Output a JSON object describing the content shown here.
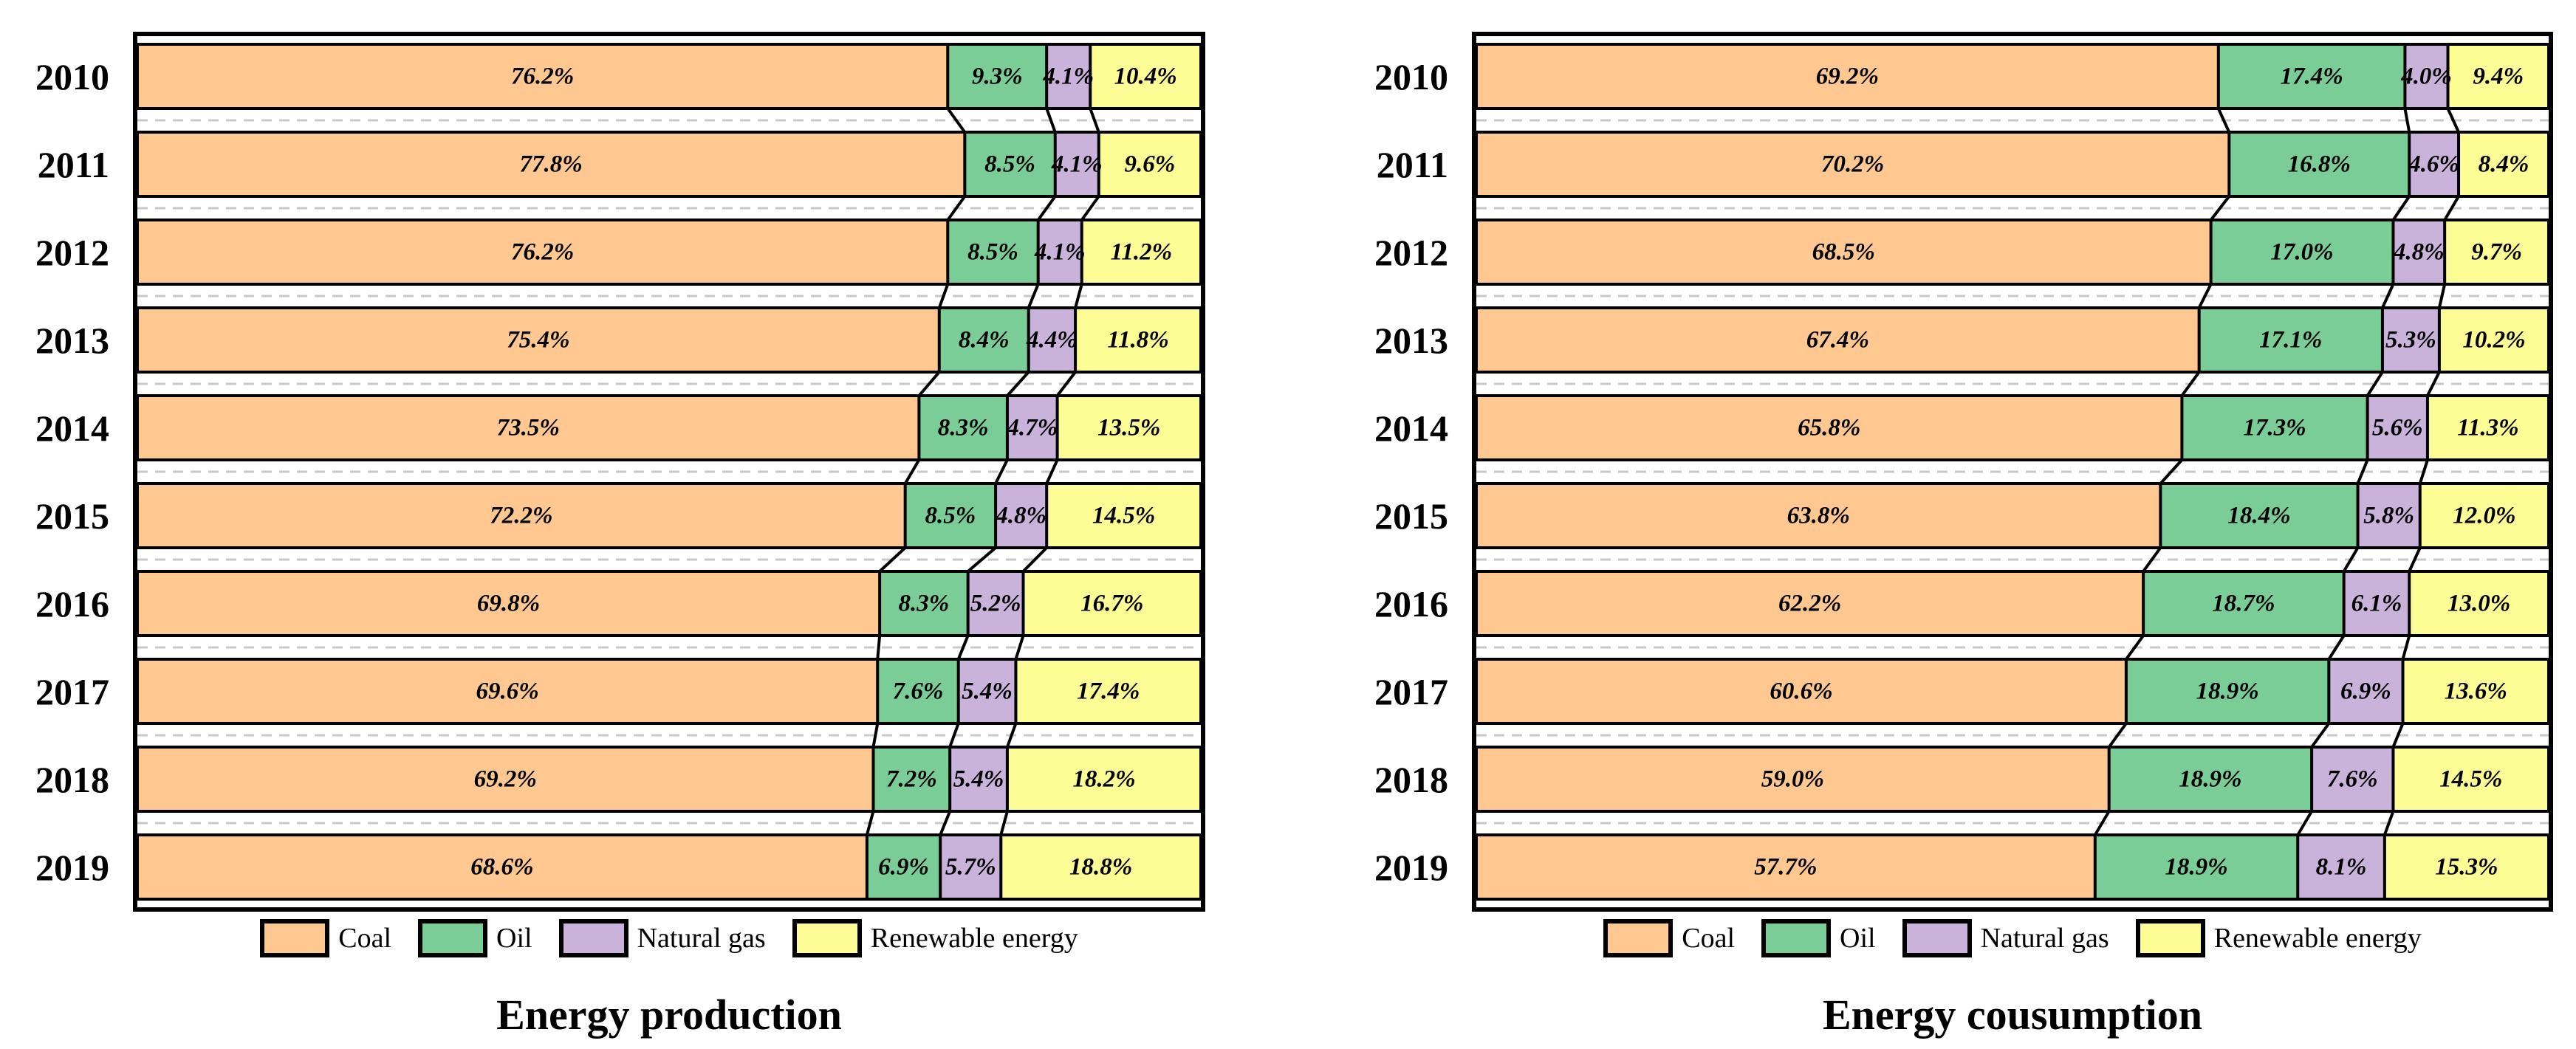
{
  "page": {
    "background": "#ffffff"
  },
  "colors": {
    "coal": "#FFC891",
    "oil": "#7ACD96",
    "natural_gas": "#C9B3DB",
    "renewable_energy": "#FDFD96",
    "line_black": "#000000",
    "gridline_gray": "#c9c9c9"
  },
  "chart_data": [
    {
      "type": "bar",
      "orientation": "horizontal",
      "stacked": true,
      "unit": "%",
      "title": "Energy production",
      "categories": [
        "2010",
        "2011",
        "2012",
        "2013",
        "2014",
        "2015",
        "2016",
        "2017",
        "2018",
        "2019"
      ],
      "series": [
        {
          "name": "Coal",
          "color": "#FFC891",
          "values": [
            76.2,
            77.8,
            76.2,
            75.4,
            73.5,
            72.2,
            69.8,
            69.6,
            69.2,
            68.6
          ]
        },
        {
          "name": "Oil",
          "color": "#7ACD96",
          "values": [
            9.3,
            8.5,
            8.5,
            8.4,
            8.3,
            8.5,
            8.3,
            7.6,
            7.2,
            6.9
          ]
        },
        {
          "name": "Natural gas",
          "color": "#C9B3DB",
          "values": [
            4.1,
            4.1,
            4.1,
            4.4,
            4.7,
            4.8,
            5.2,
            5.4,
            5.4,
            5.7
          ]
        },
        {
          "name": "Renewable energy",
          "color": "#FDFD96",
          "values": [
            10.4,
            9.6,
            11.2,
            11.8,
            13.5,
            14.5,
            16.7,
            17.4,
            18.2,
            18.8
          ]
        }
      ],
      "xlim": [
        0,
        100
      ],
      "value_labels": "inside segments, one decimal + %",
      "legend_position": "bottom",
      "grid": "dashed horizontal gray line between bars",
      "connectors": "black diagonal lines join segment boundaries of adjacent bars"
    },
    {
      "type": "bar",
      "orientation": "horizontal",
      "stacked": true,
      "unit": "%",
      "title": "Energy cousumption",
      "categories": [
        "2010",
        "2011",
        "2012",
        "2013",
        "2014",
        "2015",
        "2016",
        "2017",
        "2018",
        "2019"
      ],
      "series": [
        {
          "name": "Coal",
          "color": "#FFC891",
          "values": [
            69.2,
            70.2,
            68.5,
            67.4,
            65.8,
            63.8,
            62.2,
            60.6,
            59.0,
            57.7
          ]
        },
        {
          "name": "Oil",
          "color": "#7ACD96",
          "values": [
            17.4,
            16.8,
            17.0,
            17.1,
            17.3,
            18.4,
            18.7,
            18.9,
            18.9,
            18.9
          ]
        },
        {
          "name": "Natural gas",
          "color": "#C9B3DB",
          "values": [
            4.0,
            4.6,
            4.8,
            5.3,
            5.6,
            5.8,
            6.1,
            6.9,
            7.6,
            8.1
          ]
        },
        {
          "name": "Renewable energy",
          "color": "#FDFD96",
          "values": [
            9.4,
            8.4,
            9.7,
            10.2,
            11.3,
            12.0,
            13.0,
            13.6,
            14.5,
            15.3
          ]
        }
      ],
      "xlim": [
        0,
        100
      ],
      "value_labels": "inside segments, one decimal + %",
      "legend_position": "bottom",
      "grid": "dashed horizontal gray line between bars",
      "connectors": "black diagonal lines join segment boundaries of adjacent bars"
    }
  ],
  "legend": {
    "items": [
      "Coal",
      "Oil",
      "Natural gas",
      "Renewable energy"
    ]
  }
}
